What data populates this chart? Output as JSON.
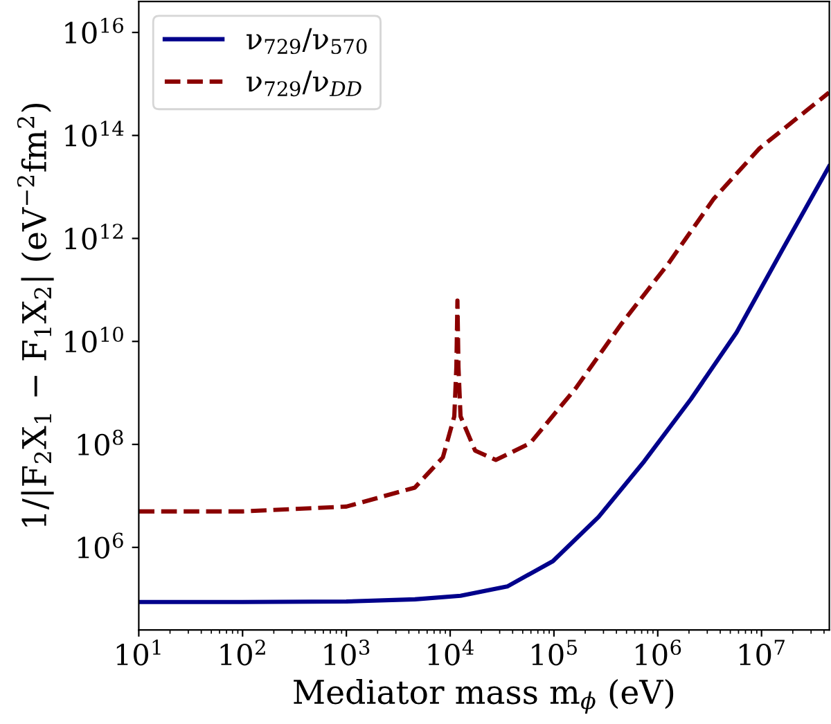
{
  "chart_data": {
    "type": "line",
    "xlabel": "Mediator mass m$_{ϕ}$ (eV)",
    "ylabel": "1/|F$_{2}$X$_{1}$ − F$_{1}$X$_{2}$| (eV$^{−2}$fm$^{2}$)",
    "log": "xy",
    "legend": "top left",
    "grid": false,
    "xlim": [
      10,
      45000000
    ],
    "ylim": [
      25000,
      4e+16
    ],
    "xticks": [
      {
        "value": 10,
        "label": "10$^{1}$"
      },
      {
        "value": 100,
        "label": "10$^{2}$"
      },
      {
        "value": 1000,
        "label": "10$^{3}$"
      },
      {
        "value": 10000,
        "label": "10$^{4}$"
      },
      {
        "value": 100000,
        "label": "10$^{5}$"
      },
      {
        "value": 1000000,
        "label": "10$^{6}$"
      },
      {
        "value": 10000000,
        "label": "10$^{7}$"
      }
    ],
    "yticks": [
      {
        "value": 1000000.0,
        "label": "10$^{6}$"
      },
      {
        "value": 100000000.0,
        "label": "10$^{8}$"
      },
      {
        "value": 10000000000.0,
        "label": "10$^{10}$"
      },
      {
        "value": 1000000000000.0,
        "label": "10$^{12}$"
      },
      {
        "value": 100000000000000.0,
        "label": "10$^{14}$"
      },
      {
        "value": 1e+16,
        "label": "10$^{16}$"
      }
    ],
    "series": [
      {
        "name": "ν$_{729}$/ν$_{570}$",
        "color": "#00008b",
        "line_style": "solid",
        "x": [
          10,
          100,
          1000,
          4571,
          12590,
          35480,
          97700,
          269000,
          741000,
          2090000,
          5750000,
          15850000,
          44700000
        ],
        "values": [
          87000,
          87000,
          89000,
          98000,
          115000,
          174000,
          540000,
          3900000,
          47000000,
          760000000,
          15000000000,
          600000000000,
          25000000000000
        ]
      },
      {
        "name": "ν$_{729}$/ν$_{DD}$",
        "color": "#8b0000",
        "line_style": "dashed",
        "x": [
          10,
          100,
          1000,
          4571,
          8510,
          10960,
          11480,
          11750,
          12020,
          12590,
          17380,
          27540,
          58900,
          162000,
          447000,
          1259000,
          3470000,
          9550000,
          26900000,
          44700000
        ],
        "values": [
          5000000,
          5000000,
          6200000,
          14500000,
          56000000,
          350000000,
          3200000000,
          62000000000,
          3200000000,
          350000000,
          76000000,
          50000000,
          105000000,
          1230000000,
          22000000000,
          320000000000,
          5900000000000,
          56000000000000,
          300000000000000,
          680000000000000
        ]
      }
    ]
  }
}
